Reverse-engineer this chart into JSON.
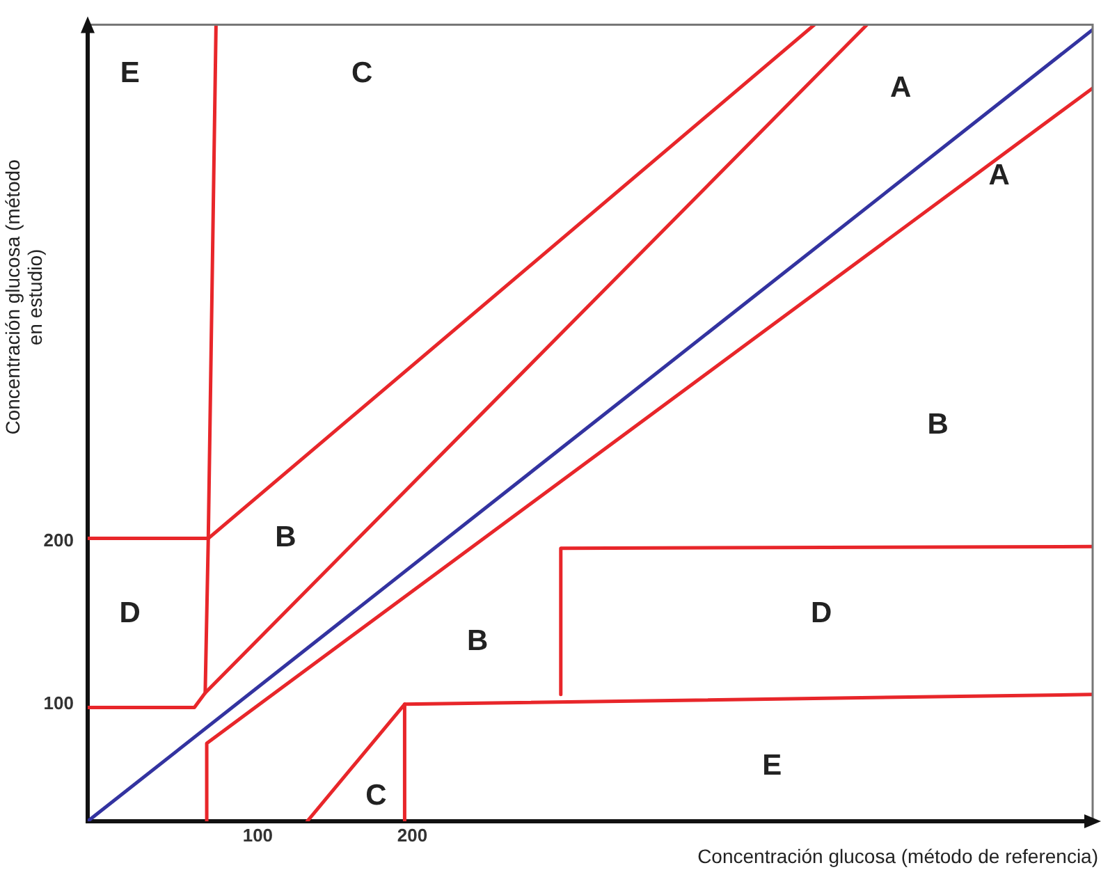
{
  "chart_data": {
    "type": "line",
    "xlabel": "Concentración glucosa (método de referencia)",
    "ylabel": "Concentración glucosa (método\nen estudio)",
    "xlim": [
      -10,
      640
    ],
    "ylim": [
      28,
      518
    ],
    "xticks": [
      100,
      200
    ],
    "yticks": [
      100,
      200
    ],
    "grid": false,
    "legend": false,
    "marker": "none",
    "line_style": "solid",
    "series": [
      {
        "color": "#3333a0",
        "x": [
          -10,
          640
        ],
        "values": [
          28,
          515
        ]
      },
      {
        "color": "#e8262a",
        "x": [
          73,
          68,
          66,
          59,
          -10
        ],
        "values": [
          518,
          202,
          107,
          98,
          98
        ]
      },
      {
        "color": "#e8262a",
        "x": [
          68,
          460
        ],
        "values": [
          202,
          518
        ]
      },
      {
        "color": "#e8262a",
        "x": [
          -10,
          68
        ],
        "values": [
          202,
          202
        ]
      },
      {
        "color": "#e8262a",
        "x": [
          66,
          494
        ],
        "values": [
          107,
          518
        ]
      },
      {
        "color": "#e8262a",
        "x": [
          67,
          67,
          640
        ],
        "values": [
          28,
          76,
          479
        ]
      },
      {
        "color": "#e8262a",
        "x": [
          132,
          195,
          640
        ],
        "values": [
          28,
          100,
          106
        ]
      },
      {
        "color": "#e8262a",
        "x": [
          195,
          195
        ],
        "values": [
          28,
          100
        ]
      },
      {
        "color": "#e8262a",
        "x": [
          296,
          296,
          640
        ],
        "values": [
          106,
          196,
          197
        ]
      }
    ],
    "annotations": [
      "E",
      "C",
      "A",
      "A",
      "B",
      "B",
      "D",
      "B",
      "D",
      "E",
      "C"
    ]
  }
}
